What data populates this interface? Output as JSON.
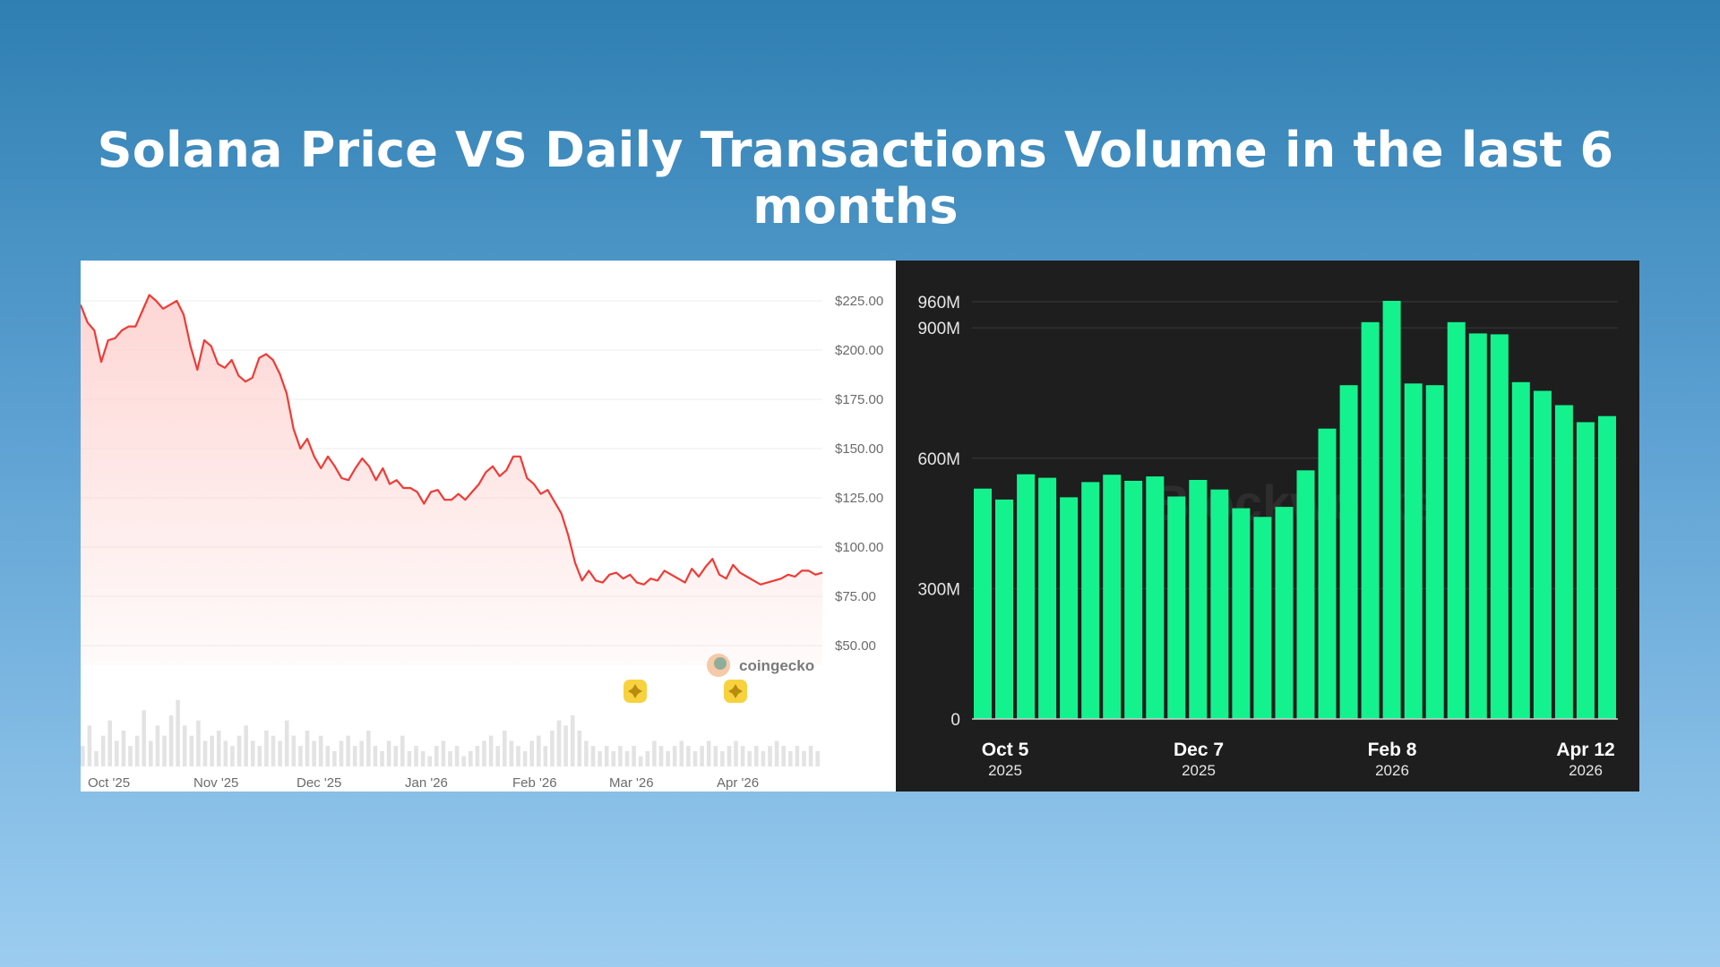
{
  "title": "Solana Price VS Daily Transactions Volume in the last 6 months",
  "colors": {
    "price_line": "#ef3b36",
    "price_fill": "#fdd6d4",
    "volume_bars": "#e3e3e3",
    "tx_bars": "#14f28d",
    "tx_background": "#1e1e1e",
    "marker": "#f7d23e"
  },
  "chart_data": [
    {
      "type": "line",
      "ylim": [
        40,
        240
      ],
      "y_ticks": [
        "$225.00",
        "$200.00",
        "$175.00",
        "$150.00",
        "$125.00",
        "$100.00",
        "$75.00",
        "$50.00"
      ],
      "y_tick_values": [
        225,
        200,
        175,
        150,
        125,
        100,
        75,
        50
      ],
      "x_ticks": [
        "Oct '25",
        "Nov '25",
        "Dec '25",
        "Jan '26",
        "Feb '26",
        "Mar '26",
        "Apr '26"
      ],
      "watermark": "coingecko",
      "grid": true,
      "series": [
        {
          "values": [
            223,
            214,
            210,
            194,
            205,
            206,
            210,
            212,
            212,
            220,
            228,
            225,
            221,
            223,
            225,
            218,
            202,
            190,
            205,
            202,
            193,
            191,
            195,
            187,
            184,
            186,
            196,
            198,
            195,
            188,
            178,
            160,
            150,
            155,
            146,
            140,
            146,
            141,
            135,
            134,
            140,
            145,
            141,
            134,
            140,
            132,
            134,
            130,
            130,
            128,
            122,
            128,
            129,
            124,
            124,
            127,
            124,
            128,
            132,
            138,
            141,
            136,
            139,
            146,
            146,
            135,
            132,
            127,
            129,
            123,
            117,
            106,
            92,
            83,
            88,
            83,
            82,
            86,
            87,
            84,
            86,
            82,
            81,
            84,
            83,
            88,
            86,
            84,
            82,
            89,
            85,
            90,
            94,
            86,
            84,
            91,
            87,
            85,
            83,
            81,
            82,
            83,
            84,
            86,
            85,
            88,
            88,
            86,
            87
          ]
        }
      ],
      "volume": [
        20,
        40,
        15,
        30,
        45,
        25,
        35,
        20,
        30,
        55,
        25,
        40,
        30,
        50,
        65,
        40,
        30,
        45,
        25,
        30,
        35,
        25,
        20,
        30,
        40,
        25,
        20,
        35,
        30,
        25,
        45,
        30,
        20,
        35,
        25,
        30,
        20,
        15,
        25,
        30,
        20,
        25,
        35,
        20,
        15,
        25,
        20,
        30,
        15,
        20,
        15,
        10,
        20,
        25,
        15,
        20,
        10,
        15,
        20,
        25,
        30,
        20,
        35,
        25,
        20,
        15,
        25,
        30,
        20,
        35,
        45,
        40,
        50,
        35,
        25,
        20,
        15,
        20,
        15,
        20,
        15,
        20,
        10,
        15,
        25,
        20,
        15,
        20,
        25,
        20,
        15,
        20,
        25,
        20,
        15,
        20,
        25,
        20,
        15,
        20,
        15,
        20,
        25,
        20,
        15,
        20,
        15,
        20,
        15
      ],
      "markers": [
        "Mar '26",
        "Apr '26"
      ]
    },
    {
      "type": "bar",
      "ylim": [
        0,
        1000000000
      ],
      "y_ticks": [
        "960M",
        "900M",
        "600M",
        "300M",
        "0"
      ],
      "y_tick_values": [
        960000000,
        900000000,
        600000000,
        300000000,
        0
      ],
      "x_ticks": [
        {
          "label": "Oct 5",
          "year": "2025"
        },
        {
          "label": "Dec 7",
          "year": "2025"
        },
        {
          "label": "Feb 8",
          "year": "2026"
        },
        {
          "label": "Apr 12",
          "year": "2026"
        }
      ],
      "watermark": "Blockworks",
      "grid": true,
      "values": [
        530000000,
        505000000,
        563000000,
        555000000,
        510000000,
        545000000,
        562000000,
        548000000,
        558000000,
        512000000,
        550000000,
        528000000,
        485000000,
        465000000,
        488000000,
        572000000,
        668000000,
        768000000,
        913000000,
        962000000,
        772000000,
        768000000,
        913000000,
        887000000,
        885000000,
        775000000,
        755000000,
        722000000,
        683000000,
        697000000
      ]
    }
  ]
}
